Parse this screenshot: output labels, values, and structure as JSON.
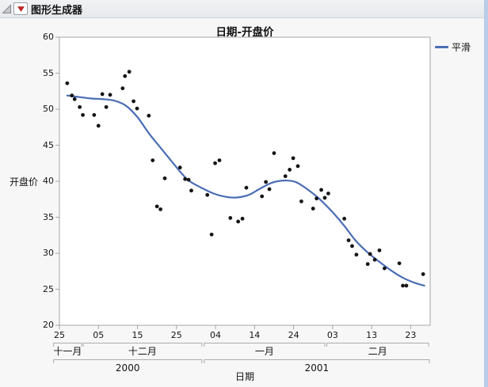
{
  "window": {
    "header": {
      "title": "图形生成器"
    }
  },
  "chart_data": {
    "type": "scatter",
    "title": "日期-开盘价",
    "xlabel": "日期",
    "ylabel": "开盘价",
    "legend": [
      {
        "label": "平滑",
        "color": "#4a6db4"
      }
    ],
    "marker_color": "#151515",
    "smooth_color": "#4a6db4",
    "frame_color": "#a6a6a6",
    "ylim": [
      20,
      60
    ],
    "y_ticks": [
      20,
      25,
      30,
      35,
      40,
      45,
      50,
      55,
      60
    ],
    "x_unit_note": "x values are day offsets from 2000-11-25",
    "xlim": [
      0,
      95
    ],
    "x_ticks": [
      {
        "d": 0,
        "label": "25"
      },
      {
        "d": 10,
        "label": "05"
      },
      {
        "d": 20,
        "label": "15"
      },
      {
        "d": 30,
        "label": "25"
      },
      {
        "d": 40,
        "label": "04"
      },
      {
        "d": 50,
        "label": "14"
      },
      {
        "d": 60,
        "label": "24"
      },
      {
        "d": 70,
        "label": "03"
      },
      {
        "d": 80,
        "label": "13"
      },
      {
        "d": 90,
        "label": "23"
      }
    ],
    "month_groups": [
      {
        "label": "十一月",
        "d0": -1.5,
        "d1": 5.7
      },
      {
        "label": "十二月",
        "d0": 6.1,
        "d1": 36.5
      },
      {
        "label": "一月",
        "d0": 37.1,
        "d1": 68.0
      },
      {
        "label": "二月",
        "d0": 68.5,
        "d1": 94.6
      }
    ],
    "year_groups": [
      {
        "label": "2000",
        "d0": -1.5,
        "d1": 36.5
      },
      {
        "label": "2001",
        "d0": 37.1,
        "d1": 94.8
      }
    ],
    "points": [
      [
        2.0,
        53.6
      ],
      [
        3.2,
        51.9
      ],
      [
        3.9,
        51.4
      ],
      [
        5.2,
        50.3
      ],
      [
        6.0,
        49.2
      ],
      [
        8.9,
        49.2
      ],
      [
        10.0,
        47.7
      ],
      [
        11.0,
        52.1
      ],
      [
        12.0,
        50.3
      ],
      [
        13.0,
        52.0
      ],
      [
        16.2,
        52.9
      ],
      [
        16.8,
        54.6
      ],
      [
        17.9,
        55.2
      ],
      [
        19.0,
        51.1
      ],
      [
        19.9,
        50.1
      ],
      [
        22.9,
        49.1
      ],
      [
        23.9,
        42.9
      ],
      [
        25.0,
        36.5
      ],
      [
        25.9,
        36.1
      ],
      [
        27.0,
        40.4
      ],
      [
        30.9,
        41.9
      ],
      [
        32.2,
        40.3
      ],
      [
        33.1,
        40.2
      ],
      [
        33.8,
        38.7
      ],
      [
        37.9,
        38.1
      ],
      [
        39.0,
        32.6
      ],
      [
        39.9,
        42.5
      ],
      [
        41.0,
        42.9
      ],
      [
        43.8,
        34.9
      ],
      [
        45.8,
        34.4
      ],
      [
        46.9,
        34.8
      ],
      [
        47.9,
        39.1
      ],
      [
        51.9,
        37.9
      ],
      [
        52.9,
        39.9
      ],
      [
        53.8,
        38.9
      ],
      [
        55.0,
        43.9
      ],
      [
        57.9,
        40.7
      ],
      [
        59.0,
        41.6
      ],
      [
        59.9,
        43.2
      ],
      [
        61.1,
        42.1
      ],
      [
        62.0,
        37.2
      ],
      [
        65.0,
        36.2
      ],
      [
        65.9,
        37.6
      ],
      [
        67.1,
        38.8
      ],
      [
        68.0,
        37.7
      ],
      [
        68.9,
        38.3
      ],
      [
        73.0,
        34.8
      ],
      [
        74.1,
        31.8
      ],
      [
        75.0,
        31.0
      ],
      [
        76.1,
        29.8
      ],
      [
        79.0,
        28.5
      ],
      [
        79.6,
        29.9
      ],
      [
        80.8,
        29.1
      ],
      [
        82.0,
        30.4
      ],
      [
        83.3,
        27.9
      ],
      [
        87.1,
        28.6
      ],
      [
        88.0,
        25.5
      ],
      [
        88.9,
        25.5
      ],
      [
        93.2,
        27.1
      ]
    ],
    "smooth": [
      [
        2,
        51.9
      ],
      [
        5,
        51.7
      ],
      [
        8,
        51.5
      ],
      [
        11,
        51.4
      ],
      [
        14,
        51.2
      ],
      [
        17,
        50.5
      ],
      [
        20,
        48.9
      ],
      [
        23,
        46.6
      ],
      [
        26,
        44.6
      ],
      [
        29,
        42.6
      ],
      [
        32.7,
        40.3
      ],
      [
        36,
        39.2
      ],
      [
        39.5,
        38.3
      ],
      [
        43,
        37.8
      ],
      [
        45.5,
        37.75
      ],
      [
        48.5,
        38.1
      ],
      [
        51.5,
        39.0
      ],
      [
        54.5,
        39.8
      ],
      [
        57.5,
        40.1
      ],
      [
        60.5,
        39.9
      ],
      [
        63.5,
        38.9
      ],
      [
        66.5,
        37.6
      ],
      [
        70,
        35.7
      ],
      [
        73,
        33.8
      ],
      [
        76,
        31.7
      ],
      [
        79,
        30.1
      ],
      [
        82,
        28.8
      ],
      [
        85,
        27.6
      ],
      [
        88,
        26.6
      ],
      [
        91,
        25.9
      ],
      [
        93.5,
        25.5
      ]
    ]
  }
}
